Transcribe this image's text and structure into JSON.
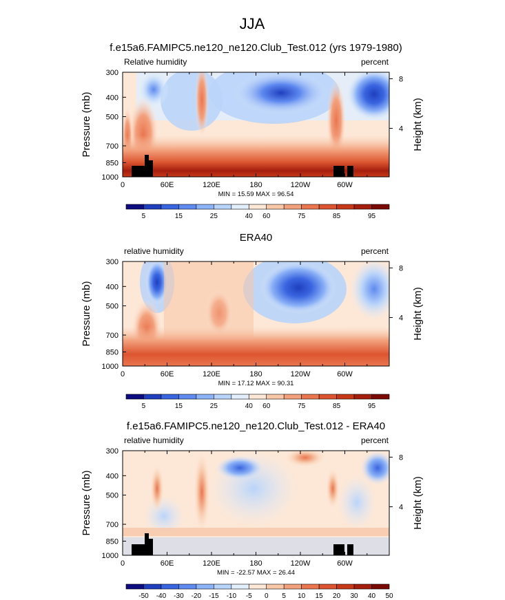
{
  "figure": {
    "title": "JJA"
  },
  "colorbar_palette": [
    "#0d0d80",
    "#1f3fbf",
    "#3a65e0",
    "#5f8af0",
    "#8cb2f7",
    "#b9d4fa",
    "#e2eefc",
    "#fde7d6",
    "#f7c7a8",
    "#f3a07c",
    "#ea7650",
    "#dc5530",
    "#c73818",
    "#a51e0d",
    "#7a0a05"
  ],
  "chart_data": [
    {
      "type": "heatmap",
      "title": "f.e15a6.FAMIPC5.ne120_ne120.Club_Test.012 (yrs 1979-1980)",
      "left_label": "Relative humidity",
      "right_label": "percent",
      "ylabel": "Pressure (mb)",
      "y2label": "Height (km)",
      "x_ticks": [
        "0",
        "60E",
        "120E",
        "180",
        "120W",
        "60W"
      ],
      "y_ticks": [
        "300",
        "400",
        "500",
        "700",
        "850",
        "1000"
      ],
      "y2_ticks": [
        "8",
        "4"
      ],
      "min_label": "MIN = 15.59  MAX = 96.54",
      "colorbar_labels": [
        "5",
        "15",
        "25",
        "40",
        "60",
        "75",
        "85",
        "95"
      ],
      "terrain": true
    },
    {
      "type": "heatmap",
      "title": "ERA40",
      "left_label": "relative humidity",
      "right_label": "percent",
      "ylabel": "Pressure (mb)",
      "y2label": "Height (km)",
      "x_ticks": [
        "0",
        "60E",
        "120E",
        "180",
        "120W",
        "60W"
      ],
      "y_ticks": [
        "300",
        "400",
        "500",
        "700",
        "850",
        "1000"
      ],
      "y2_ticks": [
        "8",
        "4"
      ],
      "min_label": "MIN = 17.12  MAX = 90.31",
      "colorbar_labels": [
        "5",
        "15",
        "25",
        "40",
        "60",
        "75",
        "85",
        "95"
      ],
      "terrain": false
    },
    {
      "type": "heatmap",
      "title": "f.e15a6.FAMIPC5.ne120_ne120.Club_Test.012 - ERA40",
      "left_label": "relative humidity",
      "right_label": "percent",
      "ylabel": "Pressure (mb)",
      "y2label": "Height (km)",
      "x_ticks": [
        "0",
        "60E",
        "120E",
        "180",
        "120W",
        "60W"
      ],
      "y_ticks": [
        "300",
        "400",
        "500",
        "700",
        "850",
        "1000"
      ],
      "y2_ticks": [
        "8",
        "4"
      ],
      "min_label": "MIN = -22.57  MAX = 26.44",
      "colorbar_labels": [
        "-50",
        "-40",
        "-30",
        "-20",
        "-15",
        "-10",
        "-5",
        "0",
        "5",
        "10",
        "15",
        "20",
        "30",
        "40",
        "50"
      ],
      "terrain": true
    }
  ]
}
